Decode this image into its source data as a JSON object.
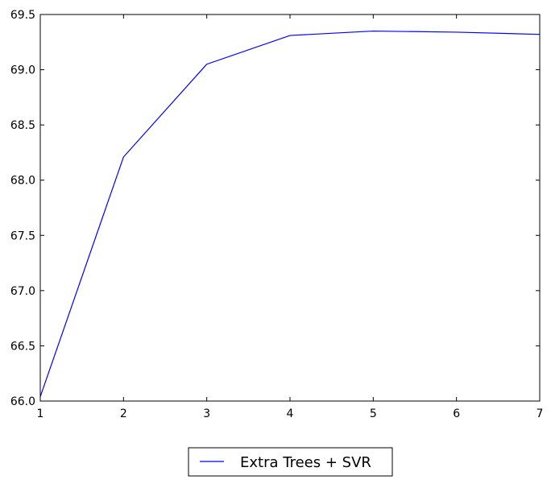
{
  "chart_data": {
    "type": "line",
    "title": "",
    "xlabel": "",
    "ylabel": "",
    "xlim": [
      1,
      7
    ],
    "ylim": [
      66.0,
      69.5
    ],
    "x_ticks": [
      1,
      2,
      3,
      4,
      5,
      6,
      7
    ],
    "x_tick_labels": [
      "1",
      "2",
      "3",
      "4",
      "5",
      "6",
      "7"
    ],
    "y_ticks": [
      66.0,
      66.5,
      67.0,
      67.5,
      68.0,
      68.5,
      69.0,
      69.5
    ],
    "y_tick_labels": [
      "66.0",
      "66.5",
      "67.0",
      "67.5",
      "68.0",
      "68.5",
      "69.0",
      "69.5"
    ],
    "grid": false,
    "legend_position": "bottom-center, outside plot",
    "series": [
      {
        "name": "Extra Trees + SVR",
        "color": "#0000ff",
        "x": [
          1,
          2,
          3,
          4,
          5,
          6,
          7
        ],
        "y": [
          66.04,
          68.21,
          69.05,
          69.31,
          69.35,
          69.34,
          69.32
        ]
      }
    ]
  }
}
